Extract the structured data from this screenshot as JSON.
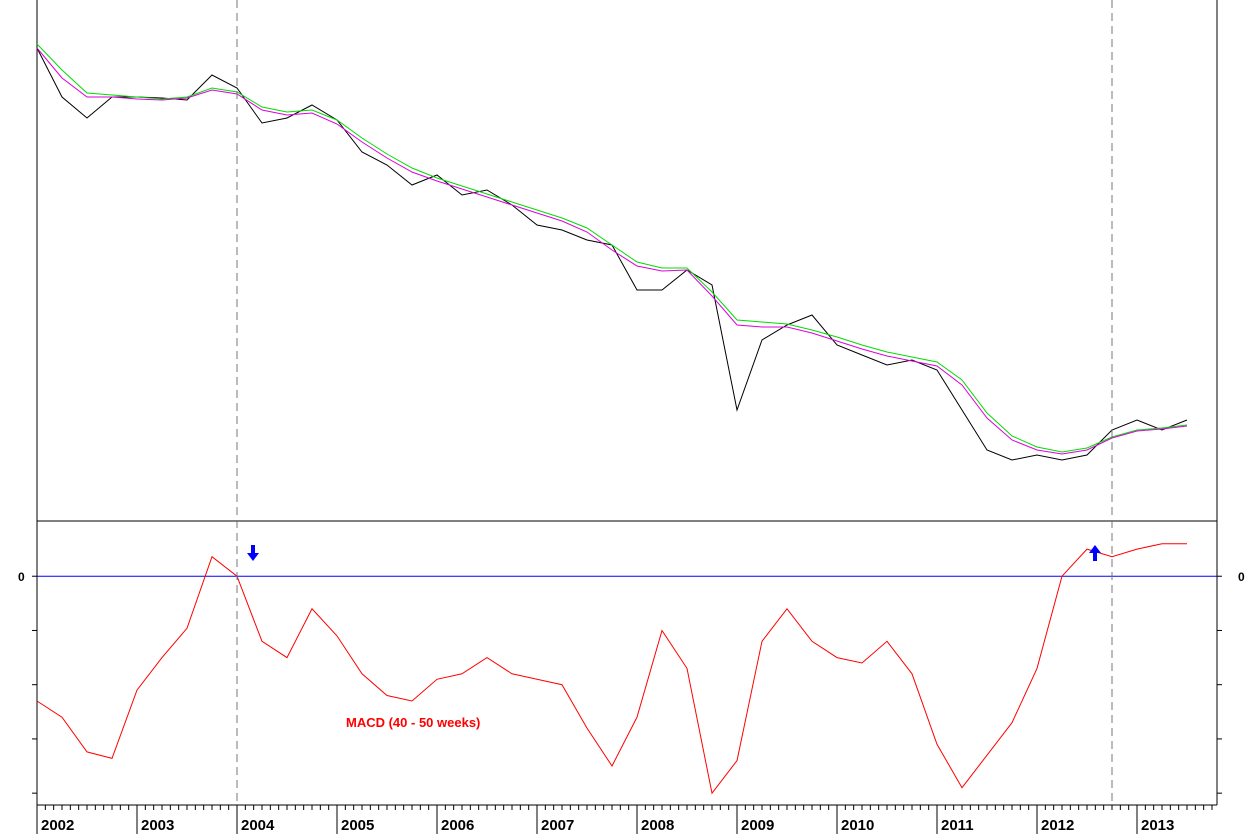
{
  "chart_data": [
    {
      "type": "line",
      "panel": "price",
      "x": [
        2002.0,
        2002.25,
        2002.5,
        2002.75,
        2003.0,
        2003.25,
        2003.5,
        2003.75,
        2004.0,
        2004.25,
        2004.5,
        2004.75,
        2005.0,
        2005.25,
        2005.5,
        2005.75,
        2006.0,
        2006.25,
        2006.5,
        2006.75,
        2007.0,
        2007.25,
        2007.5,
        2007.75,
        2008.0,
        2008.25,
        2008.5,
        2008.75,
        2009.0,
        2009.25,
        2009.5,
        2009.75,
        2010.0,
        2010.25,
        2010.5,
        2010.75,
        2011.0,
        2011.25,
        2011.5,
        2011.75,
        2012.0,
        2012.25,
        2012.5,
        2012.75,
        2013.0,
        2013.25,
        2013.5
      ],
      "series": [
        {
          "color": "#000000",
          "values": [
            48,
            97,
            118,
            97,
            97,
            98,
            100,
            75,
            88,
            123,
            118,
            105,
            120,
            152,
            165,
            185,
            175,
            195,
            190,
            205,
            225,
            230,
            240,
            245,
            290,
            290,
            270,
            285,
            410,
            340,
            325,
            315,
            345,
            355,
            365,
            360,
            370,
            410,
            450,
            460,
            455,
            460,
            455,
            430,
            420,
            430,
            420
          ]
        },
        {
          "color": "#00dd00",
          "values": [
            44,
            70,
            93,
            95,
            97,
            99,
            97,
            88,
            92,
            107,
            112,
            110,
            120,
            138,
            154,
            168,
            178,
            186,
            194,
            202,
            210,
            218,
            228,
            245,
            262,
            268,
            268,
            292,
            320,
            322,
            324,
            330,
            337,
            345,
            352,
            357,
            362,
            380,
            413,
            436,
            447,
            452,
            448,
            437,
            430,
            428,
            425
          ]
        },
        {
          "color": "#dd00dd",
          "values": [
            48,
            78,
            97,
            97,
            99,
            100,
            98,
            90,
            94,
            110,
            115,
            113,
            124,
            142,
            158,
            172,
            181,
            189,
            197,
            205,
            213,
            221,
            232,
            250,
            266,
            271,
            270,
            296,
            325,
            327,
            327,
            333,
            341,
            349,
            356,
            361,
            366,
            385,
            418,
            440,
            450,
            454,
            450,
            438,
            431,
            429,
            426
          ]
        }
      ],
      "signals": [
        {
          "x": 2004.0,
          "direction": "down",
          "color": "#0000ff"
        },
        {
          "x": 2012.75,
          "direction": "up",
          "color": "#0000ff"
        }
      ],
      "xticklabels": [
        "2002",
        "2003",
        "2004",
        "2005",
        "2006",
        "2007",
        "2008",
        "2009",
        "2010",
        "2011",
        "2012",
        "2013"
      ],
      "xlim": [
        2002.0,
        2013.8
      ]
    },
    {
      "type": "line",
      "panel": "macd",
      "title": "MACD (40 - 50 weeks)",
      "title_color": "#ff0000",
      "zero_line_label": "0",
      "zero_line_color": "#0000ff",
      "x": [
        2002.0,
        2002.25,
        2002.5,
        2002.75,
        2003.0,
        2003.25,
        2003.5,
        2003.75,
        2004.0,
        2004.25,
        2004.5,
        2004.75,
        2005.0,
        2005.25,
        2005.5,
        2005.75,
        2006.0,
        2006.25,
        2006.5,
        2006.75,
        2007.0,
        2007.25,
        2007.5,
        2007.75,
        2008.0,
        2008.25,
        2008.5,
        2008.75,
        2009.0,
        2009.25,
        2009.5,
        2009.75,
        2010.0,
        2010.25,
        2010.5,
        2010.75,
        2011.0,
        2011.25,
        2011.5,
        2011.75,
        2012.0,
        2012.25,
        2012.5,
        2012.75,
        2013.0,
        2013.25,
        2013.5
      ],
      "series": [
        {
          "color": "#ff0000",
          "values": [
            -115,
            -130,
            -162,
            -168,
            -105,
            -75,
            -48,
            18,
            0,
            -60,
            -75,
            -30,
            -55,
            -90,
            -110,
            -115,
            -95,
            -90,
            -75,
            -90,
            -95,
            -100,
            -140,
            -175,
            -130,
            -50,
            -85,
            -200,
            -170,
            -60,
            -30,
            -60,
            -75,
            -80,
            -60,
            -90,
            -155,
            -195,
            -165,
            -135,
            -85,
            0,
            25,
            18,
            25,
            30,
            30
          ]
        }
      ],
      "ylim": [
        -210,
        50
      ]
    }
  ]
}
